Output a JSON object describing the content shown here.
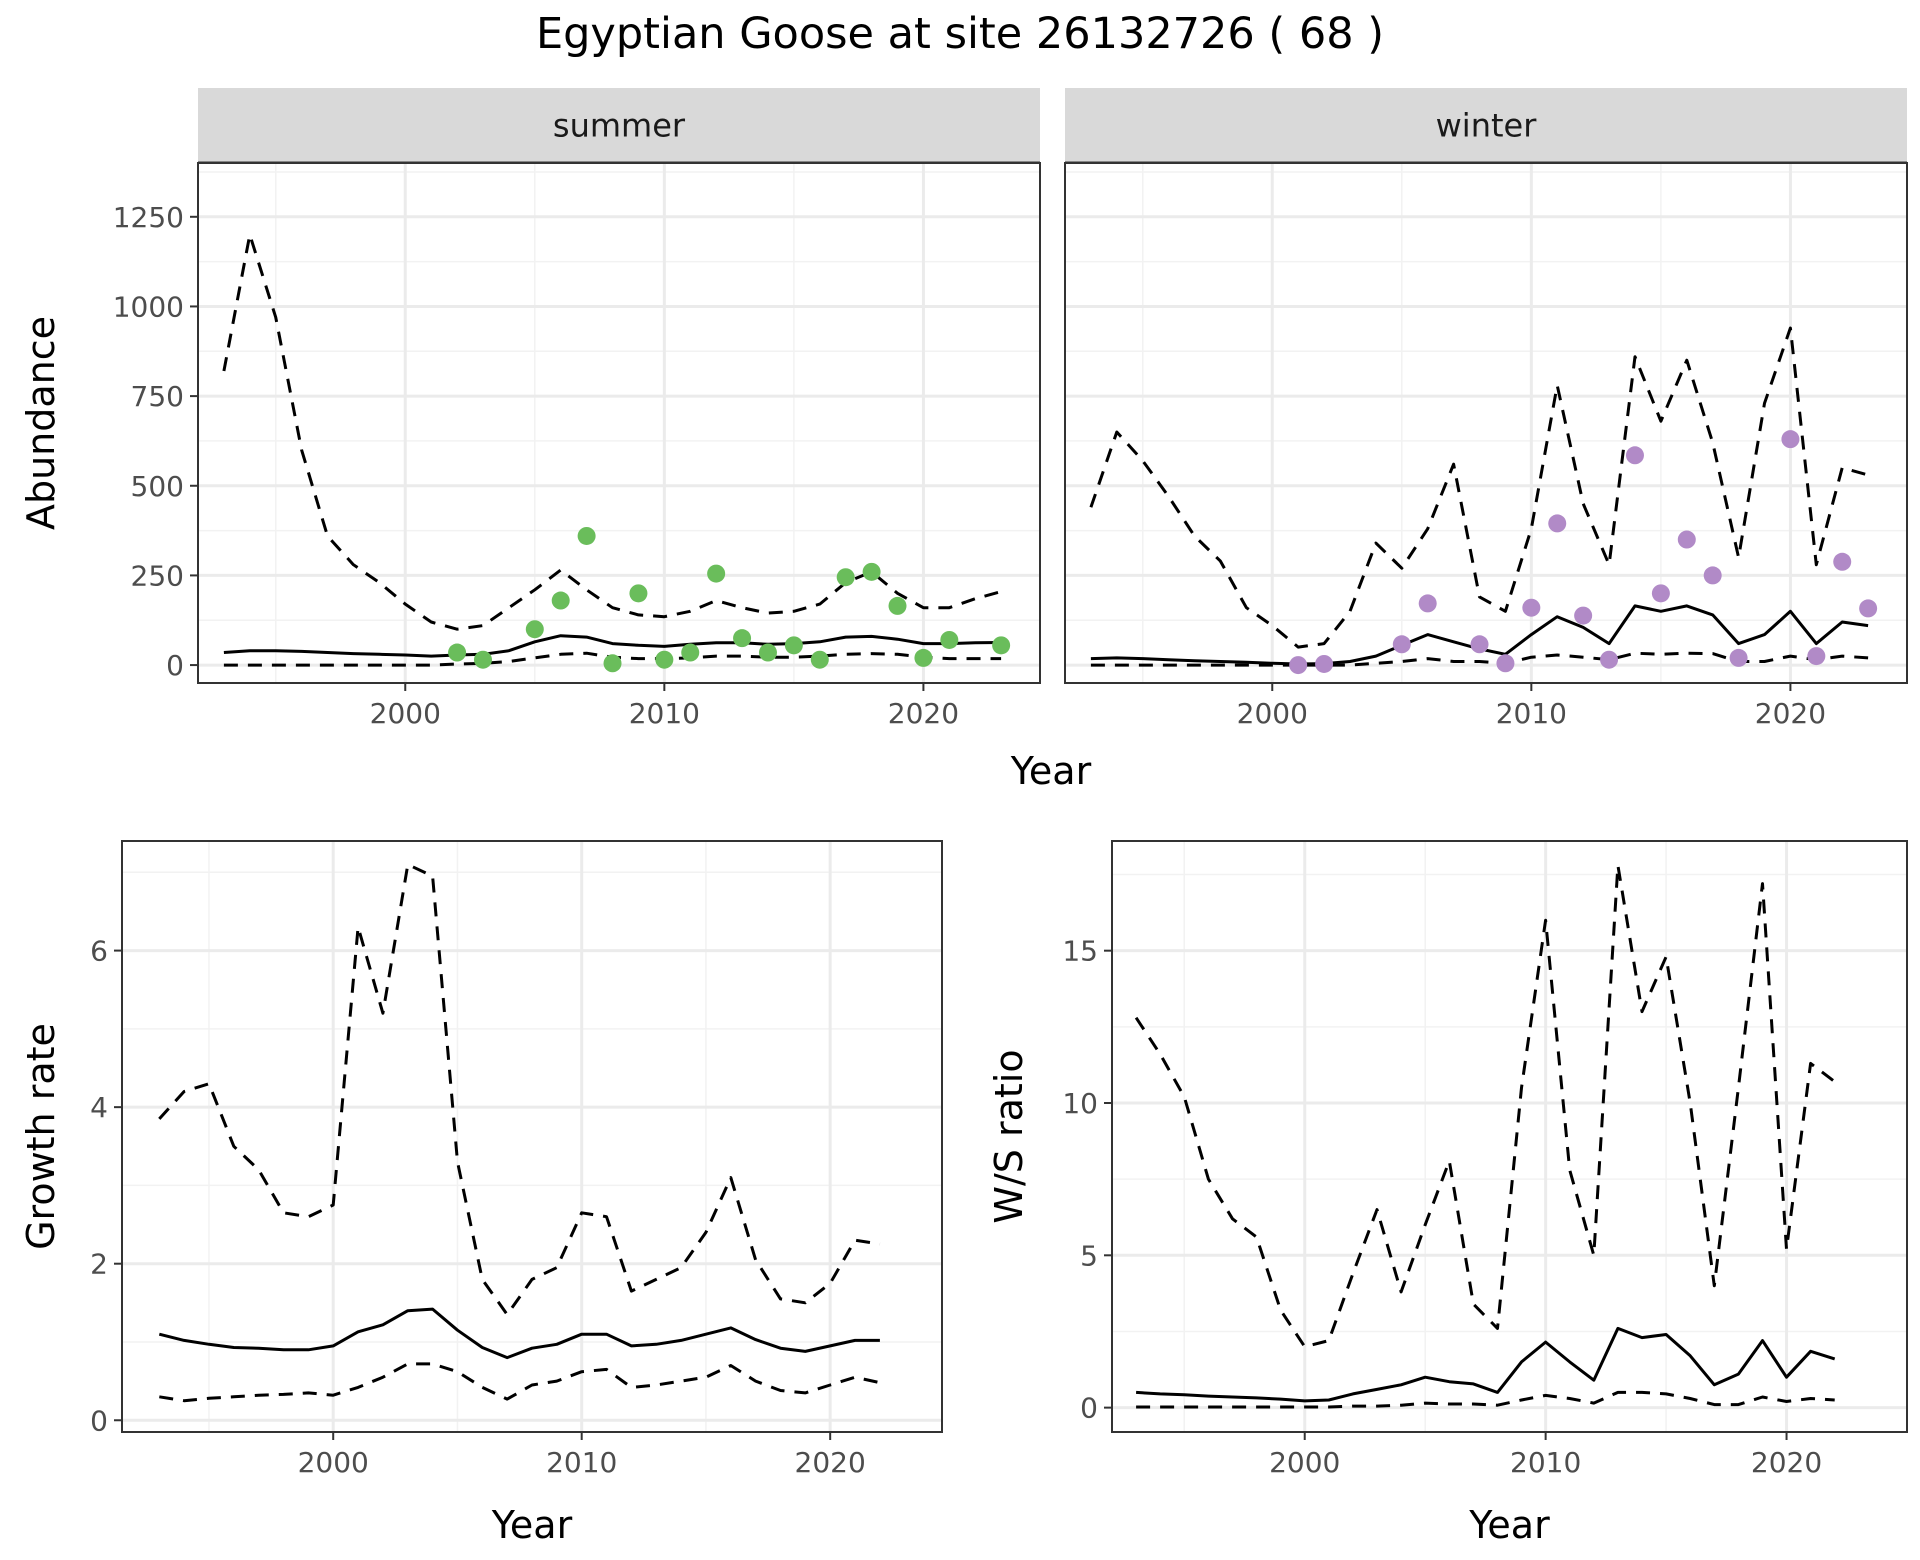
{
  "title": "Egyptian Goose at site 26132726 ( 68 )",
  "chart_data": [
    {
      "id": "abundance-summer",
      "type": "line",
      "facet_label": "summer",
      "xlabel": "",
      "ylabel": "Abundance",
      "xlim": [
        1992,
        2024.5
      ],
      "ylim": [
        -50,
        1400
      ],
      "x_ticks": [
        2000,
        2010,
        2020
      ],
      "y_ticks": [
        0,
        250,
        500,
        750,
        1000,
        1250
      ],
      "x": [
        1993,
        1994,
        1995,
        1996,
        1997,
        1998,
        1999,
        2000,
        2001,
        2002,
        2003,
        2004,
        2005,
        2006,
        2007,
        2008,
        2009,
        2010,
        2011,
        2012,
        2013,
        2014,
        2015,
        2016,
        2017,
        2018,
        2019,
        2020,
        2021,
        2022,
        2023
      ],
      "series": [
        {
          "role": "estimate",
          "values": [
            35,
            40,
            40,
            38,
            35,
            32,
            30,
            28,
            25,
            28,
            30,
            40,
            65,
            82,
            78,
            60,
            55,
            52,
            58,
            62,
            62,
            58,
            60,
            65,
            78,
            80,
            72,
            60,
            60,
            62,
            63
          ]
        },
        {
          "role": "upper",
          "values": [
            820,
            1200,
            970,
            600,
            360,
            280,
            230,
            170,
            120,
            100,
            110,
            160,
            210,
            265,
            210,
            160,
            140,
            135,
            150,
            180,
            160,
            145,
            150,
            170,
            230,
            260,
            200,
            160,
            160,
            185,
            205
          ]
        },
        {
          "role": "lower",
          "values": [
            0,
            0,
            0,
            0,
            0,
            0,
            0,
            0,
            0,
            3,
            5,
            10,
            20,
            30,
            33,
            22,
            18,
            18,
            20,
            25,
            25,
            22,
            22,
            25,
            30,
            32,
            30,
            22,
            18,
            18,
            18
          ]
        }
      ],
      "points": {
        "color": "#6ABD5B",
        "x": [
          2002,
          2003,
          2005,
          2006,
          2007,
          2008,
          2009,
          2010,
          2011,
          2012,
          2013,
          2014,
          2015,
          2016,
          2017,
          2018,
          2019,
          2020,
          2021,
          2023
        ],
        "y": [
          35,
          15,
          100,
          180,
          360,
          5,
          200,
          15,
          35,
          255,
          75,
          35,
          55,
          15,
          245,
          260,
          165,
          20,
          70,
          55
        ]
      }
    },
    {
      "id": "abundance-winter",
      "type": "line",
      "facet_label": "winter",
      "xlabel": "",
      "ylabel": "",
      "xlim": [
        1992,
        2024.5
      ],
      "ylim": [
        -50,
        1400
      ],
      "x_ticks": [
        2000,
        2010,
        2020
      ],
      "y_ticks": [
        0,
        250,
        500,
        750,
        1000,
        1250
      ],
      "x": [
        1993,
        1994,
        1995,
        1996,
        1997,
        1998,
        1999,
        2000,
        2001,
        2002,
        2003,
        2004,
        2005,
        2006,
        2007,
        2008,
        2009,
        2010,
        2011,
        2012,
        2013,
        2014,
        2015,
        2016,
        2017,
        2018,
        2019,
        2020,
        2021,
        2022,
        2023
      ],
      "series": [
        {
          "role": "estimate",
          "values": [
            18,
            20,
            18,
            15,
            12,
            10,
            8,
            5,
            3,
            4,
            10,
            25,
            55,
            85,
            65,
            45,
            30,
            85,
            135,
            105,
            60,
            165,
            150,
            165,
            140,
            60,
            85,
            150,
            60,
            120,
            110
          ]
        },
        {
          "role": "upper",
          "values": [
            440,
            650,
            570,
            470,
            360,
            290,
            160,
            110,
            50,
            60,
            150,
            340,
            270,
            380,
            560,
            190,
            150,
            380,
            780,
            450,
            280,
            860,
            680,
            850,
            620,
            300,
            730,
            940,
            280,
            550,
            530
          ]
        },
        {
          "role": "lower",
          "values": [
            0,
            0,
            0,
            0,
            0,
            0,
            0,
            0,
            0,
            0,
            0,
            5,
            10,
            18,
            10,
            10,
            5,
            22,
            28,
            22,
            15,
            33,
            30,
            33,
            32,
            10,
            10,
            25,
            15,
            25,
            20
          ]
        }
      ],
      "points": {
        "color": "#B18AC7",
        "x": [
          2001,
          2002,
          2005,
          2006,
          2008,
          2009,
          2010,
          2011,
          2012,
          2013,
          2014,
          2015,
          2016,
          2017,
          2018,
          2020,
          2021,
          2022,
          2023
        ],
        "y": [
          0,
          3,
          58,
          172,
          58,
          5,
          160,
          395,
          138,
          15,
          585,
          200,
          350,
          250,
          20,
          630,
          25,
          288,
          158
        ]
      }
    },
    {
      "id": "growth-rate",
      "type": "line",
      "xlabel": "Year",
      "ylabel": "Growth rate",
      "xlim": [
        1991.5,
        2024.5
      ],
      "ylim": [
        -0.15,
        7.4
      ],
      "x_ticks": [
        2000,
        2010,
        2020
      ],
      "y_ticks": [
        0,
        2,
        4,
        6
      ],
      "x": [
        1993,
        1994,
        1995,
        1996,
        1997,
        1998,
        1999,
        2000,
        2001,
        2002,
        2003,
        2004,
        2005,
        2006,
        2007,
        2008,
        2009,
        2010,
        2011,
        2012,
        2013,
        2014,
        2015,
        2016,
        2017,
        2018,
        2019,
        2020,
        2021,
        2022
      ],
      "series": [
        {
          "role": "estimate",
          "values": [
            1.1,
            1.02,
            0.97,
            0.93,
            0.92,
            0.9,
            0.9,
            0.95,
            1.13,
            1.22,
            1.4,
            1.42,
            1.15,
            0.93,
            0.8,
            0.92,
            0.97,
            1.1,
            1.1,
            0.95,
            0.97,
            1.02,
            1.1,
            1.18,
            1.03,
            0.92,
            0.88,
            0.95,
            1.02,
            1.02
          ]
        },
        {
          "role": "upper",
          "values": [
            3.85,
            4.2,
            4.3,
            3.5,
            3.2,
            2.65,
            2.6,
            2.75,
            6.3,
            5.2,
            7.1,
            6.95,
            3.3,
            1.8,
            1.35,
            1.8,
            1.95,
            2.65,
            2.6,
            1.65,
            1.8,
            1.95,
            2.4,
            3.1,
            2.05,
            1.55,
            1.5,
            1.75,
            2.3,
            2.25
          ]
        },
        {
          "role": "lower",
          "values": [
            0.3,
            0.25,
            0.28,
            0.3,
            0.32,
            0.33,
            0.35,
            0.32,
            0.42,
            0.55,
            0.72,
            0.72,
            0.62,
            0.42,
            0.27,
            0.45,
            0.5,
            0.62,
            0.65,
            0.42,
            0.45,
            0.5,
            0.55,
            0.7,
            0.5,
            0.38,
            0.35,
            0.45,
            0.55,
            0.48
          ]
        }
      ]
    },
    {
      "id": "ws-ratio",
      "type": "line",
      "xlabel": "Year",
      "ylabel": "W/S ratio",
      "xlim": [
        1992,
        2025
      ],
      "ylim": [
        -0.8,
        18.6
      ],
      "x_ticks": [
        2000,
        2010,
        2020
      ],
      "y_ticks": [
        0,
        5,
        10,
        15
      ],
      "x": [
        1993,
        1994,
        1995,
        1996,
        1997,
        1998,
        1999,
        2000,
        2001,
        2002,
        2003,
        2004,
        2005,
        2006,
        2007,
        2008,
        2009,
        2010,
        2011,
        2012,
        2013,
        2014,
        2015,
        2016,
        2017,
        2018,
        2019,
        2020,
        2021,
        2022
      ],
      "series": [
        {
          "role": "estimate",
          "values": [
            0.5,
            0.45,
            0.42,
            0.38,
            0.35,
            0.32,
            0.28,
            0.22,
            0.25,
            0.45,
            0.6,
            0.75,
            1.0,
            0.85,
            0.78,
            0.5,
            1.5,
            2.15,
            1.5,
            0.9,
            2.6,
            2.3,
            2.4,
            1.7,
            0.75,
            1.1,
            2.2,
            1.0,
            1.85,
            1.6
          ]
        },
        {
          "role": "upper",
          "values": [
            12.8,
            11.6,
            10.2,
            7.5,
            6.2,
            5.6,
            3.2,
            2.0,
            2.2,
            4.4,
            6.5,
            3.8,
            6.0,
            8.1,
            3.4,
            2.6,
            10.5,
            16.0,
            7.8,
            5.0,
            17.8,
            13.0,
            14.8,
            10.0,
            4.0,
            10.5,
            17.2,
            5.2,
            11.3,
            10.7
          ]
        },
        {
          "role": "lower",
          "values": [
            0.02,
            0.02,
            0.02,
            0.02,
            0.02,
            0.02,
            0.02,
            0.02,
            0.02,
            0.05,
            0.05,
            0.08,
            0.15,
            0.12,
            0.12,
            0.08,
            0.25,
            0.4,
            0.3,
            0.15,
            0.5,
            0.5,
            0.45,
            0.3,
            0.1,
            0.1,
            0.35,
            0.2,
            0.3,
            0.25
          ]
        }
      ]
    }
  ]
}
